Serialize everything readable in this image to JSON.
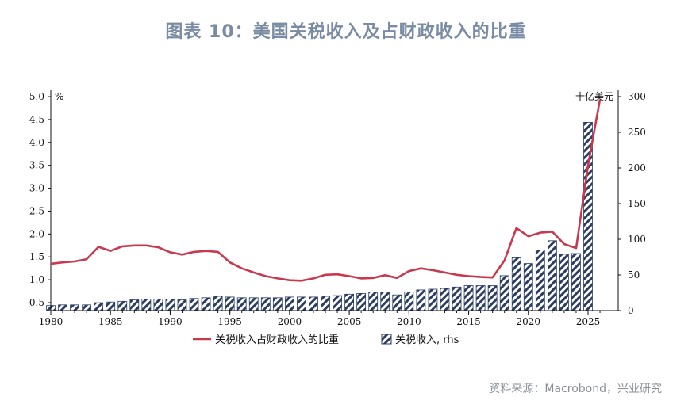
{
  "title": "图表 10：美国关税收入及占财政收入的比重",
  "source": "资料来源：Macrobond，兴业研究",
  "chart_data": {
    "type": "bar+line",
    "left_unit": "%",
    "right_unit": "十亿美元",
    "x_range": [
      1980,
      2026
    ],
    "x_ticks": [
      "1980",
      "1985",
      "1990",
      "1995",
      "2000",
      "2005",
      "2010",
      "2015",
      "2020",
      "2025"
    ],
    "left_ylim": [
      0.3,
      5.0
    ],
    "left_ticks": [
      "0.5",
      "1.0",
      "1.5",
      "2.0",
      "2.5",
      "3.0",
      "3.5",
      "4.0",
      "4.5",
      "5.0"
    ],
    "right_ylim": [
      0,
      300
    ],
    "right_ticks": [
      "0",
      "50",
      "100",
      "150",
      "200",
      "250",
      "300"
    ],
    "legend": [
      "关税收入占财政收入的比重",
      "关税收入, rhs"
    ],
    "series": [
      {
        "name": "关税收入占财政收入的比重",
        "type": "line",
        "axis": "left",
        "color": "#c8384f",
        "x": [
          1980,
          1981,
          1982,
          1983,
          1984,
          1985,
          1986,
          1987,
          1988,
          1989,
          1990,
          1991,
          1992,
          1993,
          1994,
          1995,
          1996,
          1997,
          1998,
          1999,
          2000,
          2001,
          2002,
          2003,
          2004,
          2005,
          2006,
          2007,
          2008,
          2009,
          2010,
          2011,
          2012,
          2013,
          2014,
          2015,
          2016,
          2017,
          2018,
          2019,
          2020,
          2021,
          2022,
          2023,
          2024,
          2025,
          2026
        ],
        "values": [
          1.35,
          1.38,
          1.4,
          1.45,
          1.72,
          1.63,
          1.73,
          1.75,
          1.75,
          1.71,
          1.6,
          1.55,
          1.61,
          1.63,
          1.61,
          1.38,
          1.25,
          1.16,
          1.08,
          1.03,
          0.99,
          0.98,
          1.03,
          1.11,
          1.12,
          1.08,
          1.03,
          1.04,
          1.1,
          1.04,
          1.19,
          1.25,
          1.21,
          1.16,
          1.11,
          1.08,
          1.06,
          1.05,
          1.42,
          2.13,
          1.95,
          2.03,
          2.05,
          1.78,
          1.69,
          3.5,
          4.94
        ]
      },
      {
        "name": "关税收入, rhs",
        "type": "bar",
        "axis": "right",
        "color": "#2c3f63",
        "x": [
          1980,
          1981,
          1982,
          1983,
          1984,
          1985,
          1986,
          1987,
          1988,
          1989,
          1990,
          1991,
          1992,
          1993,
          1994,
          1995,
          1996,
          1997,
          1998,
          1999,
          2000,
          2001,
          2002,
          2003,
          2004,
          2005,
          2006,
          2007,
          2008,
          2009,
          2010,
          2011,
          2012,
          2013,
          2014,
          2015,
          2016,
          2017,
          2018,
          2019,
          2020,
          2021,
          2022,
          2023,
          2024,
          2025,
          2026
        ],
        "values": [
          7,
          8,
          8,
          8,
          11,
          12,
          13,
          15,
          16,
          16,
          16,
          15,
          17,
          18,
          20,
          19,
          18,
          18,
          18,
          18,
          19,
          19,
          19,
          20,
          21,
          23,
          24,
          26,
          26,
          22,
          26,
          29,
          30,
          31,
          33,
          35,
          35,
          35,
          49,
          74,
          66,
          85,
          98,
          79,
          80,
          264,
          0
        ]
      }
    ]
  }
}
